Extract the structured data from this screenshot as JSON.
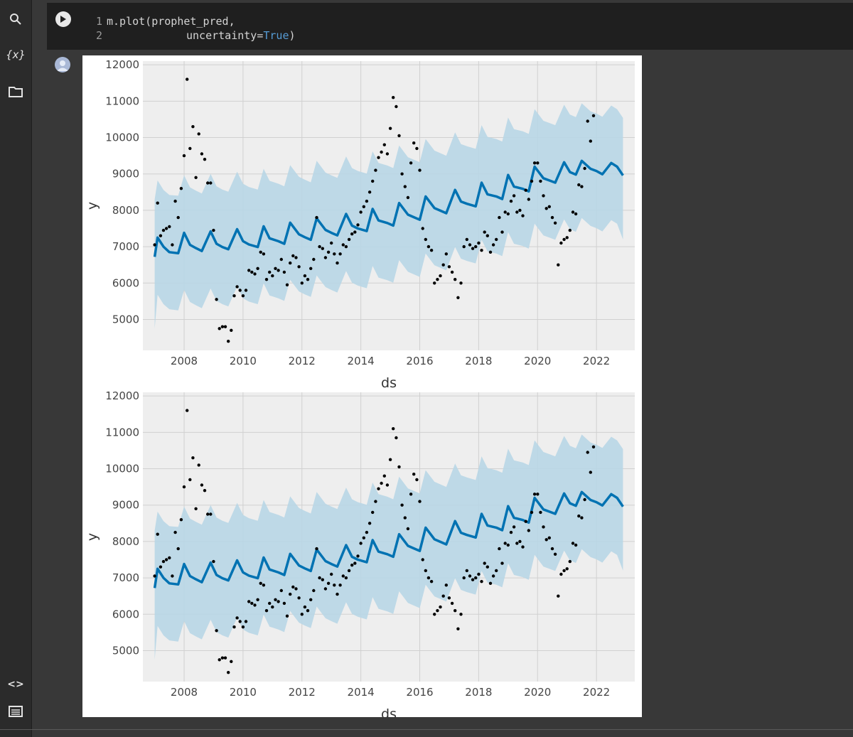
{
  "sidebar": {
    "icons": [
      {
        "name": "search-icon",
        "glyph": "search"
      },
      {
        "name": "variables-icon",
        "label": "{x}"
      },
      {
        "name": "folder-icon",
        "glyph": "folder"
      },
      {
        "name": "code-snippets-icon",
        "label": "<>"
      },
      {
        "name": "terminal-icon",
        "glyph": "terminal"
      }
    ]
  },
  "code_cell": {
    "line1_number": "1",
    "line1_text": "m.plot(prophet_pred,",
    "line2_number": "2",
    "line2_text": "uncertainty=",
    "line2_keyword": "True",
    "line2_tail": ")"
  },
  "colors": {
    "forecast_line": "#0072b2",
    "uncertainty_band": "#b8d6e6",
    "plot_bg": "#eeeeee",
    "points": "#000000"
  },
  "chart_data": [
    {
      "type": "line",
      "xlabel": "ds",
      "ylabel": "y",
      "xlim": [
        2006.6,
        2023.3
      ],
      "ylim": [
        4150,
        12100
      ],
      "xticks": [
        "2008",
        "2010",
        "2012",
        "2014",
        "2016",
        "2018",
        "2020",
        "2022"
      ],
      "yticks": [
        "5000",
        "6000",
        "7000",
        "8000",
        "9000",
        "10000",
        "11000",
        "12000"
      ],
      "grid": true,
      "series": [
        {
          "kind": "forecast_line",
          "x": [
            2007.0,
            2007.1,
            2007.3,
            2007.5,
            2007.8,
            2008.0,
            2008.2,
            2008.4,
            2008.6,
            2008.9,
            2009.1,
            2009.3,
            2009.5,
            2009.8,
            2010.0,
            2010.2,
            2010.5,
            2010.7,
            2010.9,
            2011.2,
            2011.4,
            2011.6,
            2011.9,
            2012.1,
            2012.3,
            2012.5,
            2012.8,
            2013.0,
            2013.2,
            2013.5,
            2013.7,
            2013.9,
            2014.2,
            2014.4,
            2014.6,
            2014.9,
            2015.1,
            2015.3,
            2015.6,
            2015.8,
            2016.0,
            2016.2,
            2016.5,
            2016.7,
            2016.9,
            2017.2,
            2017.4,
            2017.6,
            2017.9,
            2018.1,
            2018.3,
            2018.6,
            2018.8,
            2019.0,
            2019.2,
            2019.5,
            2019.7,
            2019.9,
            2020.2,
            2020.4,
            2020.6,
            2020.9,
            2021.1,
            2021.3,
            2021.5,
            2021.8,
            2022.0,
            2022.2,
            2022.5,
            2022.7,
            2022.9
          ],
          "y": [
            6720,
            7250,
            7000,
            6850,
            6820,
            7380,
            7050,
            6960,
            6880,
            7420,
            7080,
            6990,
            6930,
            7480,
            7150,
            7060,
            6990,
            7560,
            7230,
            7150,
            7080,
            7660,
            7340,
            7260,
            7190,
            7780,
            7460,
            7380,
            7310,
            7900,
            7580,
            7500,
            7430,
            8040,
            7720,
            7650,
            7580,
            8200,
            7880,
            7810,
            7740,
            8380,
            8060,
            7990,
            7920,
            8560,
            8240,
            8180,
            8110,
            8760,
            8440,
            8380,
            8310,
            8970,
            8650,
            8590,
            8520,
            9200,
            8880,
            8820,
            8760,
            9320,
            9050,
            8980,
            9360,
            9140,
            9080,
            8990,
            9300,
            9200,
            8960
          ]
        },
        {
          "kind": "uncertainty_upper",
          "y": [
            8300,
            8820,
            8560,
            8420,
            8400,
            8960,
            8630,
            8540,
            8460,
            9000,
            8660,
            8570,
            8510,
            9060,
            8730,
            8640,
            8570,
            9140,
            8810,
            8730,
            8660,
            9240,
            8920,
            8840,
            8770,
            9360,
            9040,
            8960,
            8890,
            9480,
            9160,
            9080,
            9010,
            9620,
            9300,
            9230,
            9160,
            9780,
            9460,
            9390,
            9320,
            9960,
            9640,
            9570,
            9500,
            10140,
            9820,
            9760,
            9690,
            10340,
            10020,
            9960,
            9890,
            10550,
            10230,
            10170,
            10100,
            10780,
            10460,
            10400,
            10340,
            10900,
            10630,
            10560,
            10940,
            10720,
            10660,
            10570,
            10880,
            10780,
            10540
          ]
        },
        {
          "kind": "uncertainty_lower",
          "y": [
            4750,
            5680,
            5420,
            5280,
            5250,
            5810,
            5480,
            5390,
            5310,
            5850,
            5510,
            5420,
            5360,
            5910,
            5580,
            5490,
            5420,
            5990,
            5660,
            5580,
            5510,
            6090,
            5770,
            5690,
            5620,
            6210,
            5890,
            5810,
            5740,
            6330,
            6010,
            5930,
            5860,
            6470,
            6150,
            6080,
            6010,
            6630,
            6310,
            6240,
            6170,
            6810,
            6490,
            6420,
            6350,
            6990,
            6670,
            6610,
            6540,
            7190,
            6870,
            6810,
            6740,
            7400,
            7080,
            7020,
            6950,
            7630,
            7310,
            7250,
            7190,
            7750,
            7480,
            7410,
            7790,
            7570,
            7510,
            7420,
            7730,
            7630,
            7200
          ]
        },
        {
          "kind": "observed_points",
          "x": [
            2007.0,
            2007.1,
            2007.2,
            2007.3,
            2007.4,
            2007.5,
            2007.6,
            2007.7,
            2007.8,
            2007.9,
            2008.0,
            2008.1,
            2008.2,
            2008.3,
            2008.4,
            2008.5,
            2008.6,
            2008.7,
            2008.8,
            2008.9,
            2009.0,
            2009.1,
            2009.2,
            2009.3,
            2009.4,
            2009.5,
            2009.6,
            2009.7,
            2009.8,
            2009.9,
            2010.0,
            2010.1,
            2010.2,
            2010.3,
            2010.4,
            2010.5,
            2010.6,
            2010.7,
            2010.8,
            2010.9,
            2011.0,
            2011.1,
            2011.2,
            2011.3,
            2011.4,
            2011.5,
            2011.6,
            2011.7,
            2011.8,
            2011.9,
            2012.0,
            2012.1,
            2012.2,
            2012.3,
            2012.4,
            2012.5,
            2012.6,
            2012.7,
            2012.8,
            2012.9,
            2013.0,
            2013.1,
            2013.2,
            2013.3,
            2013.4,
            2013.5,
            2013.6,
            2013.7,
            2013.8,
            2013.9,
            2014.0,
            2014.1,
            2014.2,
            2014.3,
            2014.4,
            2014.5,
            2014.6,
            2014.7,
            2014.8,
            2014.9,
            2015.0,
            2015.1,
            2015.2,
            2015.3,
            2015.4,
            2015.5,
            2015.6,
            2015.7,
            2015.8,
            2015.9,
            2016.0,
            2016.1,
            2016.2,
            2016.3,
            2016.4,
            2016.5,
            2016.6,
            2016.7,
            2016.8,
            2016.9,
            2017.0,
            2017.1,
            2017.2,
            2017.3,
            2017.4,
            2017.5,
            2017.6,
            2017.7,
            2017.8,
            2017.9,
            2018.0,
            2018.1,
            2018.2,
            2018.3,
            2018.4,
            2018.5,
            2018.6,
            2018.7,
            2018.8,
            2018.9,
            2019.0,
            2019.1,
            2019.2,
            2019.3,
            2019.4,
            2019.5,
            2019.6,
            2019.7,
            2019.8,
            2019.9,
            2020.0,
            2020.1,
            2020.2,
            2020.3,
            2020.4,
            2020.5,
            2020.6,
            2020.7,
            2020.8,
            2020.9,
            2021.0,
            2021.1,
            2021.2,
            2021.3,
            2021.4,
            2021.5,
            2021.6,
            2021.7,
            2021.8,
            2021.9
          ],
          "y": [
            7050,
            8200,
            7300,
            7450,
            7500,
            7550,
            7050,
            8250,
            7800,
            8600,
            9500,
            11600,
            9700,
            10300,
            8900,
            10100,
            9550,
            9400,
            8750,
            8750,
            7450,
            5550,
            4750,
            4800,
            4800,
            4400,
            4700,
            5650,
            5900,
            5800,
            5650,
            5800,
            6350,
            6300,
            6250,
            6400,
            6850,
            6800,
            6100,
            6300,
            6200,
            6400,
            6350,
            6650,
            6300,
            5950,
            6550,
            6750,
            6700,
            6450,
            6000,
            6200,
            6100,
            6400,
            6650,
            7800,
            7000,
            6950,
            6700,
            6850,
            7100,
            6800,
            6550,
            6800,
            7050,
            7000,
            7200,
            7350,
            7400,
            7600,
            7950,
            8100,
            8250,
            8500,
            8800,
            9100,
            9450,
            9600,
            9800,
            9550,
            10250,
            11100,
            10850,
            10050,
            9000,
            8650,
            8350,
            9300,
            9850,
            9700,
            9100,
            7500,
            7200,
            7000,
            6900,
            6000,
            6100,
            6200,
            6500,
            6800,
            6450,
            6300,
            6100,
            5600,
            6000,
            7000,
            7200,
            7050,
            6950,
            7000,
            7100,
            6900,
            7400,
            7300,
            6850,
            7050,
            7200,
            7800,
            7400,
            7950,
            7900,
            8250,
            8400,
            7950,
            8000,
            7850,
            8550,
            8300,
            8800,
            9300,
            9300,
            8800,
            8400,
            8050,
            8100,
            7800,
            7650,
            6500,
            7100,
            7200,
            7250,
            7450,
            7950,
            7900,
            8700,
            8650,
            9150,
            10450,
            9900,
            10600
          ]
        }
      ]
    },
    {
      "type": "line",
      "xlabel": "ds",
      "ylabel": "y",
      "xlim": [
        2006.6,
        2023.3
      ],
      "ylim": [
        4150,
        12100
      ],
      "xticks": [
        "2008",
        "2010",
        "2012",
        "2014",
        "2016",
        "2018",
        "2020",
        "2022"
      ],
      "yticks": [
        "5000",
        "6000",
        "7000",
        "8000",
        "9000",
        "10000",
        "11000",
        "12000"
      ],
      "grid": true,
      "series": "same as first chart"
    }
  ]
}
